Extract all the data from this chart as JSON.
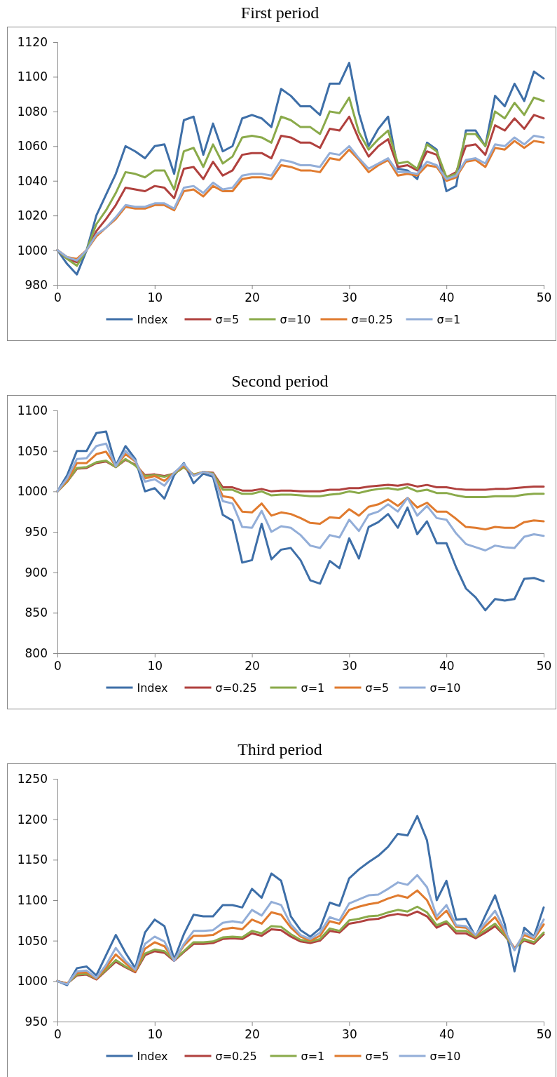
{
  "chart_data": [
    {
      "type": "line",
      "title": "First period",
      "x": [
        0,
        1,
        2,
        3,
        4,
        5,
        6,
        7,
        8,
        9,
        10,
        11,
        12,
        13,
        14,
        15,
        16,
        17,
        18,
        19,
        20,
        21,
        22,
        23,
        24,
        25,
        26,
        27,
        28,
        29,
        30,
        31,
        32,
        33,
        34,
        35,
        36,
        37,
        38,
        39,
        40,
        41,
        42,
        43,
        44,
        45,
        46,
        47,
        48,
        49,
        50
      ],
      "xlim": [
        0,
        50
      ],
      "xticks": [
        0,
        10,
        20,
        30,
        40,
        50
      ],
      "ylim": [
        980,
        1120
      ],
      "yticks": [
        980,
        1000,
        1020,
        1040,
        1060,
        1080,
        1100,
        1120
      ],
      "legend": "bottom",
      "series": [
        {
          "name": "Index",
          "color": "#3e6fa8",
          "values": [
            1000,
            992,
            986,
            1000,
            1020,
            1032,
            1044,
            1060,
            1057,
            1053,
            1060,
            1061,
            1044,
            1075,
            1077,
            1055,
            1073,
            1057,
            1060,
            1076,
            1078,
            1076,
            1071,
            1093,
            1089,
            1083,
            1083,
            1078,
            1096,
            1096,
            1108,
            1079,
            1060,
            1070,
            1077,
            1047,
            1046,
            1041,
            1062,
            1058,
            1034,
            1037,
            1069,
            1069,
            1060,
            1089,
            1083,
            1096,
            1086,
            1103,
            1099
          ]
        },
        {
          "name": "σ=5",
          "color": "#b0413e",
          "values": [
            1000,
            995,
            993,
            1000,
            1011,
            1018,
            1026,
            1036,
            1035,
            1034,
            1037,
            1036,
            1030,
            1047,
            1048,
            1041,
            1051,
            1043,
            1046,
            1055,
            1056,
            1056,
            1053,
            1066,
            1065,
            1062,
            1062,
            1059,
            1070,
            1069,
            1077,
            1064,
            1054,
            1060,
            1064,
            1048,
            1049,
            1046,
            1057,
            1055,
            1042,
            1045,
            1060,
            1061,
            1055,
            1072,
            1069,
            1076,
            1070,
            1078,
            1076
          ]
        },
        {
          "name": "σ=10",
          "color": "#8aaa4a",
          "values": [
            1000,
            995,
            991,
            1000,
            1015,
            1023,
            1033,
            1045,
            1044,
            1042,
            1046,
            1046,
            1035,
            1057,
            1059,
            1048,
            1061,
            1050,
            1054,
            1065,
            1066,
            1065,
            1062,
            1077,
            1075,
            1071,
            1071,
            1067,
            1080,
            1079,
            1088,
            1068,
            1058,
            1064,
            1069,
            1050,
            1051,
            1047,
            1061,
            1057,
            1042,
            1044,
            1067,
            1067,
            1060,
            1080,
            1076,
            1085,
            1078,
            1088,
            1086
          ]
        },
        {
          "name": "σ=0.25",
          "color": "#e07b2f",
          "values": [
            1000,
            996,
            995,
            1000,
            1008,
            1013,
            1018,
            1025,
            1024,
            1024,
            1026,
            1026,
            1023,
            1034,
            1035,
            1031,
            1037,
            1034,
            1034,
            1041,
            1042,
            1042,
            1041,
            1049,
            1048,
            1046,
            1046,
            1045,
            1053,
            1052,
            1058,
            1052,
            1045,
            1049,
            1052,
            1043,
            1044,
            1043,
            1049,
            1048,
            1040,
            1042,
            1051,
            1052,
            1048,
            1059,
            1058,
            1063,
            1059,
            1063,
            1062
          ]
        },
        {
          "name": "σ=1",
          "color": "#93aed8",
          "values": [
            1000,
            996,
            994,
            1000,
            1009,
            1013,
            1019,
            1026,
            1025,
            1025,
            1027,
            1027,
            1024,
            1036,
            1037,
            1033,
            1039,
            1035,
            1036,
            1043,
            1044,
            1044,
            1043,
            1052,
            1051,
            1049,
            1049,
            1048,
            1056,
            1055,
            1060,
            1053,
            1047,
            1050,
            1053,
            1045,
            1045,
            1044,
            1051,
            1049,
            1041,
            1043,
            1052,
            1053,
            1050,
            1061,
            1060,
            1065,
            1061,
            1066,
            1065
          ]
        }
      ]
    },
    {
      "type": "line",
      "title": "Second period",
      "x": [
        0,
        1,
        2,
        3,
        4,
        5,
        6,
        7,
        8,
        9,
        10,
        11,
        12,
        13,
        14,
        15,
        16,
        17,
        18,
        19,
        20,
        21,
        22,
        23,
        24,
        25,
        26,
        27,
        28,
        29,
        30,
        31,
        32,
        33,
        34,
        35,
        36,
        37,
        38,
        39,
        40,
        41,
        42,
        43,
        44,
        45,
        46,
        47,
        48,
        49,
        50
      ],
      "xlim": [
        0,
        50
      ],
      "xticks": [
        0,
        10,
        20,
        30,
        40,
        50
      ],
      "ylim": [
        800,
        1100
      ],
      "yticks": [
        800,
        850,
        900,
        950,
        1000,
        1050,
        1100
      ],
      "legend": "bottom",
      "series": [
        {
          "name": "Index",
          "color": "#3e6fa8",
          "values": [
            1000,
            1020,
            1050,
            1050,
            1072,
            1074,
            1032,
            1056,
            1040,
            1000,
            1004,
            991,
            1020,
            1035,
            1010,
            1022,
            1018,
            971,
            964,
            912,
            915,
            960,
            916,
            928,
            930,
            915,
            890,
            886,
            914,
            905,
            942,
            917,
            956,
            962,
            972,
            955,
            980,
            947,
            963,
            936,
            936,
            906,
            880,
            869,
            853,
            867,
            865,
            867,
            892,
            893,
            889
          ]
        },
        {
          "name": "σ=0.25",
          "color": "#b0413e",
          "values": [
            1000,
            1012,
            1028,
            1029,
            1035,
            1037,
            1030,
            1039,
            1033,
            1020,
            1021,
            1019,
            1022,
            1030,
            1020,
            1024,
            1023,
            1005,
            1005,
            1001,
            1001,
            1003,
            1000,
            1001,
            1001,
            1000,
            1000,
            1000,
            1002,
            1002,
            1004,
            1004,
            1006,
            1007,
            1008,
            1007,
            1009,
            1006,
            1008,
            1005,
            1005,
            1003,
            1002,
            1002,
            1002,
            1003,
            1003,
            1004,
            1005,
            1006,
            1006
          ]
        },
        {
          "name": "σ=1",
          "color": "#8aaa4a",
          "values": [
            1000,
            1012,
            1029,
            1030,
            1036,
            1038,
            1030,
            1040,
            1032,
            1019,
            1020,
            1018,
            1022,
            1030,
            1021,
            1024,
            1022,
            1002,
            1002,
            997,
            997,
            1000,
            995,
            996,
            996,
            995,
            994,
            994,
            996,
            997,
            1000,
            998,
            1001,
            1003,
            1004,
            1002,
            1005,
            1000,
            1002,
            998,
            998,
            995,
            993,
            993,
            993,
            994,
            994,
            994,
            996,
            997,
            997
          ]
        },
        {
          "name": "σ=5",
          "color": "#e07b2f",
          "values": [
            1000,
            1013,
            1035,
            1035,
            1046,
            1049,
            1031,
            1046,
            1037,
            1016,
            1019,
            1013,
            1023,
            1032,
            1020,
            1024,
            1021,
            994,
            992,
            975,
            974,
            985,
            970,
            974,
            972,
            967,
            961,
            960,
            968,
            967,
            978,
            970,
            981,
            984,
            990,
            982,
            992,
            980,
            986,
            975,
            975,
            966,
            956,
            955,
            953,
            956,
            955,
            955,
            962,
            964,
            963
          ]
        },
        {
          "name": "σ=10",
          "color": "#93aed8",
          "values": [
            1000,
            1016,
            1040,
            1041,
            1056,
            1059,
            1031,
            1050,
            1038,
            1012,
            1015,
            1007,
            1023,
            1034,
            1019,
            1024,
            1021,
            988,
            985,
            956,
            955,
            976,
            950,
            957,
            955,
            946,
            933,
            930,
            946,
            943,
            965,
            951,
            971,
            975,
            984,
            975,
            992,
            970,
            982,
            967,
            965,
            948,
            935,
            931,
            927,
            933,
            931,
            930,
            944,
            947,
            945
          ]
        }
      ]
    },
    {
      "type": "line",
      "title": "Third period",
      "x": [
        0,
        1,
        2,
        3,
        4,
        5,
        6,
        7,
        8,
        9,
        10,
        11,
        12,
        13,
        14,
        15,
        16,
        17,
        18,
        19,
        20,
        21,
        22,
        23,
        24,
        25,
        26,
        27,
        28,
        29,
        30,
        31,
        32,
        33,
        34,
        35,
        36,
        37,
        38,
        39,
        40,
        41,
        42,
        43,
        44,
        45,
        46,
        47,
        48,
        49,
        50
      ],
      "xlim": [
        0,
        50
      ],
      "xticks": [
        0,
        10,
        20,
        30,
        40,
        50
      ],
      "ylim": [
        950,
        1250
      ],
      "yticks": [
        950,
        1000,
        1050,
        1100,
        1150,
        1200,
        1250
      ],
      "legend": "bottom",
      "series": [
        {
          "name": "Index",
          "color": "#3e6fa8",
          "values": [
            1000,
            995,
            1016,
            1018,
            1007,
            1032,
            1057,
            1035,
            1016,
            1060,
            1076,
            1068,
            1027,
            1058,
            1082,
            1080,
            1080,
            1094,
            1094,
            1091,
            1114,
            1103,
            1133,
            1124,
            1080,
            1063,
            1055,
            1065,
            1097,
            1093,
            1127,
            1138,
            1147,
            1155,
            1166,
            1182,
            1180,
            1204,
            1174,
            1100,
            1124,
            1076,
            1077,
            1055,
            1081,
            1106,
            1070,
            1012,
            1066,
            1055,
            1091
          ]
        },
        {
          "name": "σ=0.25",
          "color": "#b0413e",
          "values": [
            1000,
            997,
            1007,
            1008,
            1002,
            1013,
            1024,
            1017,
            1011,
            1032,
            1037,
            1035,
            1025,
            1036,
            1046,
            1046,
            1047,
            1052,
            1053,
            1052,
            1059,
            1056,
            1064,
            1063,
            1055,
            1049,
            1047,
            1050,
            1062,
            1060,
            1071,
            1073,
            1076,
            1077,
            1081,
            1083,
            1081,
            1086,
            1080,
            1066,
            1072,
            1059,
            1059,
            1053,
            1060,
            1068,
            1056,
            1041,
            1050,
            1046,
            1058
          ]
        },
        {
          "name": "σ=1",
          "color": "#8aaa4a",
          "values": [
            1000,
            997,
            1008,
            1009,
            1003,
            1014,
            1026,
            1018,
            1012,
            1034,
            1039,
            1037,
            1026,
            1037,
            1048,
            1048,
            1049,
            1054,
            1055,
            1054,
            1062,
            1059,
            1068,
            1067,
            1058,
            1051,
            1049,
            1052,
            1065,
            1062,
            1075,
            1077,
            1080,
            1081,
            1085,
            1088,
            1086,
            1092,
            1085,
            1069,
            1074,
            1062,
            1062,
            1055,
            1063,
            1071,
            1057,
            1040,
            1052,
            1048,
            1060
          ]
        },
        {
          "name": "σ=5",
          "color": "#e07b2f",
          "values": [
            1000,
            997,
            1010,
            1011,
            1003,
            1017,
            1033,
            1022,
            1012,
            1040,
            1048,
            1043,
            1026,
            1044,
            1056,
            1056,
            1057,
            1064,
            1066,
            1064,
            1076,
            1071,
            1085,
            1082,
            1066,
            1055,
            1050,
            1056,
            1074,
            1071,
            1088,
            1092,
            1095,
            1097,
            1102,
            1106,
            1103,
            1112,
            1100,
            1076,
            1087,
            1067,
            1066,
            1056,
            1068,
            1079,
            1060,
            1040,
            1057,
            1052,
            1070
          ]
        },
        {
          "name": "σ=10",
          "color": "#93aed8",
          "values": [
            1000,
            996,
            1012,
            1013,
            1004,
            1020,
            1041,
            1025,
            1014,
            1046,
            1055,
            1049,
            1025,
            1046,
            1062,
            1062,
            1063,
            1072,
            1074,
            1072,
            1088,
            1081,
            1098,
            1094,
            1070,
            1057,
            1052,
            1060,
            1079,
            1075,
            1096,
            1101,
            1106,
            1107,
            1114,
            1122,
            1119,
            1131,
            1116,
            1080,
            1094,
            1069,
            1068,
            1057,
            1072,
            1087,
            1063,
            1038,
            1060,
            1054,
            1076
          ]
        }
      ]
    }
  ]
}
